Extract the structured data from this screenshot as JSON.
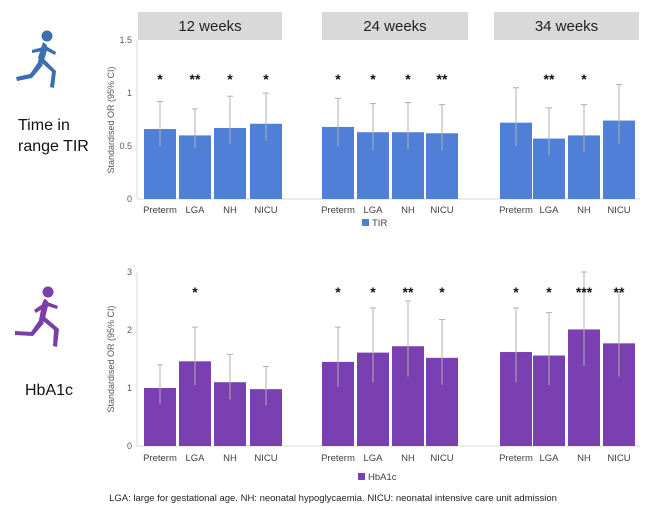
{
  "figure": {
    "footnote": "LGA: large for gestational age. NH: neonatal hypoglycaemia. NICU: neonatal intensive care unit admission",
    "time_headers": [
      "12 weeks",
      "24 weeks",
      "34 weeks"
    ],
    "header_color": "#d9d9d9"
  },
  "panels": [
    {
      "side_label_lines": [
        "Time in",
        "range TIR"
      ],
      "icon": "runner-icon",
      "icon_color": "#3a6fb0"
    },
    {
      "side_label_lines": [
        "HbA1c"
      ],
      "icon": "runner-icon",
      "icon_color": "#7a3fa6"
    }
  ],
  "chart_data": [
    {
      "type": "bar",
      "ylabel": "Standardised OR (95% CI)",
      "ylim": [
        0,
        1.5
      ],
      "yticks": [
        "0",
        "0.5",
        "1",
        "1.5"
      ],
      "legend": "TIR",
      "legend_placement": "bottom",
      "color": "#4f7fd6",
      "groups": [
        {
          "label": "12 weeks",
          "categories": [
            "Preterm",
            "LGA",
            "NH",
            "NICU"
          ],
          "values": [
            0.66,
            0.6,
            0.67,
            0.71
          ],
          "ci_upper": [
            0.92,
            0.85,
            0.97,
            1.0
          ],
          "ci_lower": [
            0.5,
            0.48,
            0.52,
            0.55
          ],
          "significance": [
            "*",
            "**",
            "*",
            "*"
          ]
        },
        {
          "label": "24 weeks",
          "categories": [
            "Preterm",
            "LGA",
            "NH",
            "NICU"
          ],
          "values": [
            0.68,
            0.63,
            0.63,
            0.62
          ],
          "ci_upper": [
            0.95,
            0.9,
            0.91,
            0.89
          ],
          "ci_lower": [
            0.5,
            0.46,
            0.47,
            0.46
          ],
          "significance": [
            "*",
            "*",
            "*",
            "**"
          ]
        },
        {
          "label": "34 weeks",
          "categories": [
            "Preterm",
            "LGA",
            "NH",
            "NICU"
          ],
          "values": [
            0.72,
            0.57,
            0.6,
            0.74
          ],
          "ci_upper": [
            1.05,
            0.86,
            0.89,
            1.08
          ],
          "ci_lower": [
            0.5,
            0.42,
            0.44,
            0.52
          ],
          "significance": [
            "",
            "**",
            "*",
            ""
          ]
        }
      ]
    },
    {
      "type": "bar",
      "ylabel": "Standardised OR (95% CI)",
      "ylim": [
        0,
        3
      ],
      "yticks": [
        "0",
        "1",
        "2",
        "3"
      ],
      "legend": "HbA1c",
      "legend_placement": "bottom",
      "color": "#7a3fb0",
      "groups": [
        {
          "label": "12 weeks",
          "categories": [
            "Preterm",
            "LGA",
            "NH",
            "NICU"
          ],
          "values": [
            1.0,
            1.46,
            1.1,
            0.98
          ],
          "ci_upper": [
            1.4,
            2.05,
            1.58,
            1.37
          ],
          "ci_lower": [
            0.72,
            1.05,
            0.8,
            0.7
          ],
          "significance": [
            "",
            "*",
            "",
            ""
          ]
        },
        {
          "label": "24 weeks",
          "categories": [
            "Preterm",
            "LGA",
            "NH",
            "NICU"
          ],
          "values": [
            1.45,
            1.61,
            1.72,
            1.52
          ],
          "ci_upper": [
            2.05,
            2.38,
            2.5,
            2.18
          ],
          "ci_lower": [
            1.02,
            1.1,
            1.2,
            1.06
          ],
          "significance": [
            "*",
            "*",
            "**",
            "*"
          ]
        },
        {
          "label": "34 weeks",
          "categories": [
            "Preterm",
            "LGA",
            "NH",
            "NICU"
          ],
          "values": [
            1.62,
            1.56,
            2.01,
            1.77
          ],
          "ci_upper": [
            2.38,
            2.3,
            3.0,
            2.65
          ],
          "ci_lower": [
            1.1,
            1.05,
            1.38,
            1.2
          ],
          "significance": [
            "*",
            "*",
            "***",
            "**"
          ]
        }
      ]
    }
  ]
}
